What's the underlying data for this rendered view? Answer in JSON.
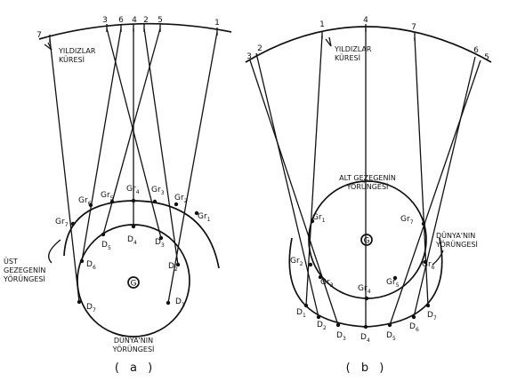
{
  "panel_a": {
    "caption": "( a )",
    "stars_label_line1": "YILDIZLAR",
    "stars_label_line2": "KÜRESİ",
    "outer_orbit_label_line1": "ÜST",
    "outer_orbit_label_line2": "GEZEGENİN",
    "outer_orbit_label_line3": "YÖRÜNGESİ",
    "earth_orbit_label_line1": "DÜNYA'NIN",
    "earth_orbit_label_line2": "YÖRÜNGESİ",
    "sun_symbol": "G",
    "star_labels": [
      "1",
      "2",
      "3",
      "4",
      "5",
      "6",
      "7"
    ]
  },
  "panel_b": {
    "caption": "( b )",
    "stars_label_line1": "YILDIZLAR",
    "stars_label_line2": "KÜRESİ",
    "inner_orbit_label_line1": "ALT GEZEGENİN",
    "inner_orbit_label_line2": "YÖRÜNGESİ",
    "earth_orbit_label_line1": "DÜNYA'NIN",
    "earth_orbit_label_line2": "YÖRÜNGESİ",
    "sun_symbol": "G",
    "star_labels": [
      "1",
      "2",
      "3",
      "4",
      "5",
      "6",
      "7"
    ]
  },
  "earth_prefix": "D",
  "planet_prefix": "G",
  "planet_sub_prefix": "r",
  "position_numbers": [
    "1",
    "2",
    "3",
    "4",
    "5",
    "6",
    "7"
  ]
}
